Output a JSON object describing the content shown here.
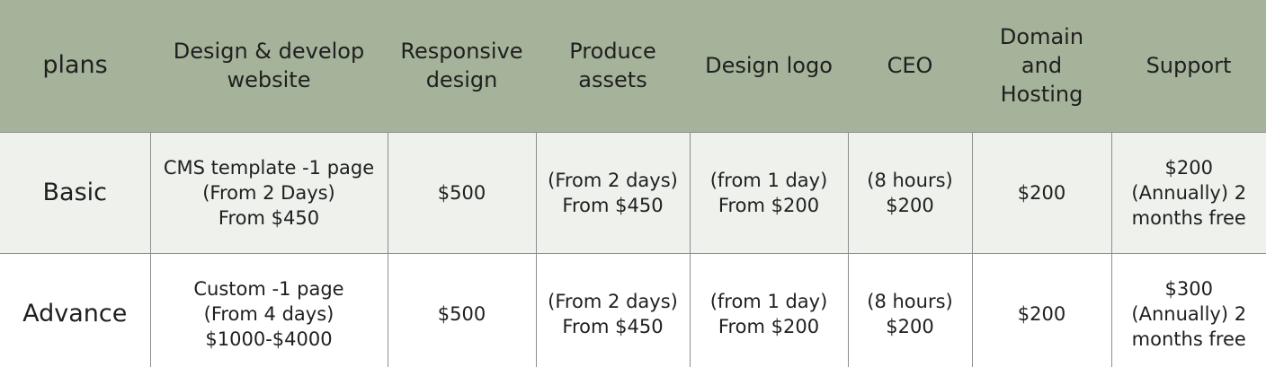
{
  "table": {
    "headers": [
      "plans",
      "Design & develop\nwebsite",
      "Responsive\ndesign",
      "Produce\nassets",
      "Design logo",
      "CEO",
      "Domain\nand\nHosting",
      "Support"
    ],
    "rows": [
      {
        "plan": "Basic",
        "design_develop": "CMS template -1 page\n(From 2 Days)\nFrom $450",
        "responsive": "$500",
        "assets": "(From 2 days)\nFrom $450",
        "logo": "(from 1 day)\nFrom $200",
        "ceo": "(8 hours)\n$200",
        "domain_hosting": "$200",
        "support": "$200\n(Annually) 2\nmonths free"
      },
      {
        "plan": "Advance",
        "design_develop": "Custom -1 page\n(From 4 days)\n$1000-$4000",
        "responsive": "$500",
        "assets": "(From 2 days)\nFrom $450",
        "logo": "(from 1 day)\nFrom $200",
        "ceo": "(8 hours)\n$200",
        "domain_hosting": "$200",
        "support": "$300\n(Annually) 2\nmonths free"
      }
    ]
  },
  "colors": {
    "header_bg": "#a5b39a",
    "row_basic_bg": "#eef1ec",
    "row_advance_bg": "#ffffff",
    "border": "#8f8f8f"
  }
}
